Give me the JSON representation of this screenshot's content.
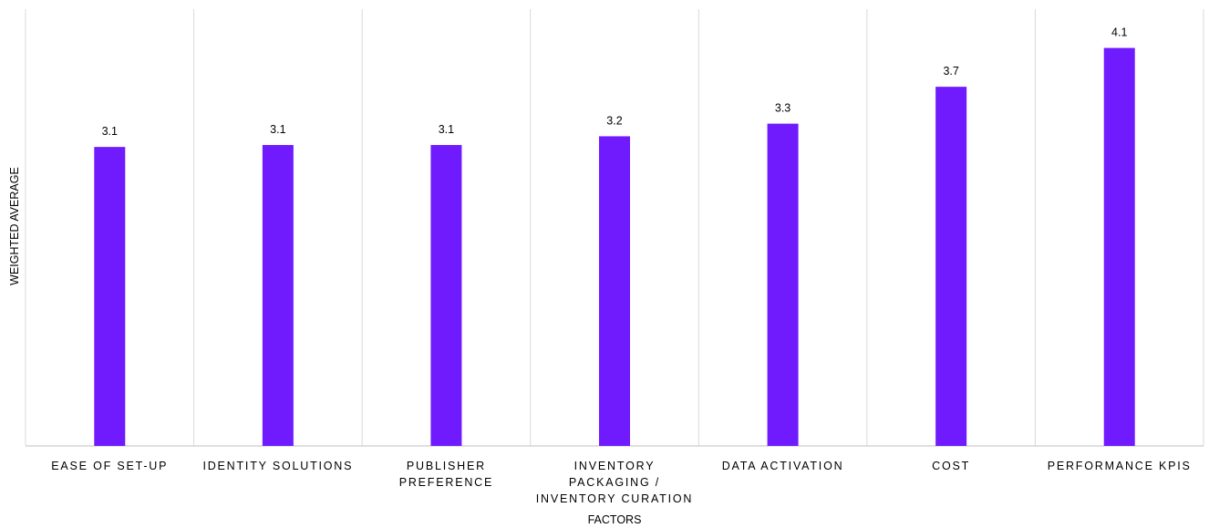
{
  "chart_data": {
    "type": "bar",
    "categories": [
      [
        "EASE OF SET-UP"
      ],
      [
        "IDENTITY SOLUTIONS"
      ],
      [
        "PUBLISHER",
        "PREFERENCE"
      ],
      [
        "INVENTORY",
        "PACKAGING /",
        "INVENTORY CURATION"
      ],
      [
        "DATA ACTIVATION"
      ],
      [
        "COST"
      ],
      [
        "PERFORMANCE KPIS"
      ]
    ],
    "values": [
      3.08,
      3.1,
      3.1,
      3.19,
      3.32,
      3.7,
      4.1
    ],
    "value_labels": [
      "3.1",
      "3.1",
      "3.1",
      "3.2",
      "3.3",
      "3.7",
      "4.1"
    ],
    "xlabel": "FACTORS",
    "ylabel": "WEIGHTED AVERAGE",
    "ylim": [
      0,
      4.5
    ],
    "grid": "vertical category separators",
    "legend": "none",
    "colors": {
      "bar": "#701AFE",
      "grid": "#D9D9D9",
      "axis": "#BFBFBF"
    }
  }
}
